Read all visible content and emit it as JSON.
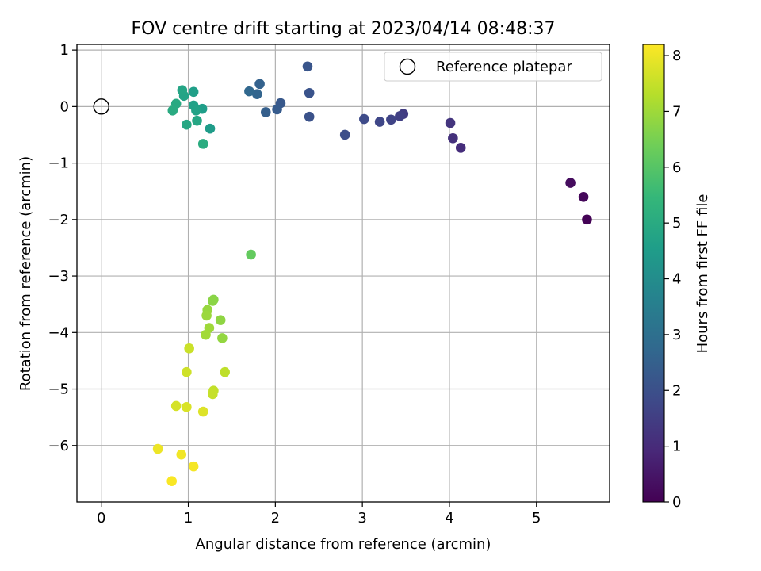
{
  "chart_data": {
    "type": "scatter",
    "title": "FOV centre drift starting at 2023/04/14 08:48:37",
    "xlabel": "Angular distance from reference (arcmin)",
    "ylabel": "Rotation from reference (arcmin)",
    "xlim": [
      -0.28,
      5.84
    ],
    "ylim": [
      -7.0,
      1.1
    ],
    "xticks": [
      0,
      1,
      2,
      3,
      4,
      5
    ],
    "yticks": [
      1,
      0,
      -1,
      -2,
      -3,
      -4,
      -5,
      -6
    ],
    "xtick_labels": [
      "0",
      "1",
      "2",
      "3",
      "4",
      "5"
    ],
    "ytick_labels": [
      "1",
      "0",
      "−1",
      "−2",
      "−3",
      "−4",
      "−5",
      "−6"
    ],
    "grid": true,
    "legend": {
      "placement": "top-right",
      "entries": [
        "Reference platepar"
      ]
    },
    "reference_point": {
      "x": 0,
      "y": 0
    },
    "colorbar": {
      "label": "Hours from first FF file",
      "colormap": "viridis",
      "range": [
        0,
        8.2
      ],
      "ticks": [
        0,
        1,
        2,
        3,
        4,
        5,
        6,
        7,
        8
      ],
      "tick_labels": [
        "0",
        "1",
        "2",
        "3",
        "4",
        "5",
        "6",
        "7",
        "8"
      ]
    },
    "points": [
      {
        "x": 5.58,
        "y": -2.0,
        "hours": 0.05
      },
      {
        "x": 5.54,
        "y": -1.6,
        "hours": 0.15
      },
      {
        "x": 5.39,
        "y": -1.35,
        "hours": 0.25
      },
      {
        "x": 4.13,
        "y": -0.73,
        "hours": 1.05
      },
      {
        "x": 4.04,
        "y": -0.56,
        "hours": 1.15
      },
      {
        "x": 4.01,
        "y": -0.29,
        "hours": 1.25
      },
      {
        "x": 3.47,
        "y": -0.13,
        "hours": 1.45
      },
      {
        "x": 3.43,
        "y": -0.17,
        "hours": 1.55
      },
      {
        "x": 3.33,
        "y": -0.23,
        "hours": 1.65
      },
      {
        "x": 3.2,
        "y": -0.27,
        "hours": 1.75
      },
      {
        "x": 3.02,
        "y": -0.22,
        "hours": 1.85
      },
      {
        "x": 2.8,
        "y": -0.5,
        "hours": 1.95
      },
      {
        "x": 2.39,
        "y": -0.18,
        "hours": 2.05
      },
      {
        "x": 2.39,
        "y": 0.24,
        "hours": 2.1
      },
      {
        "x": 2.37,
        "y": 0.71,
        "hours": 2.15
      },
      {
        "x": 2.06,
        "y": 0.06,
        "hours": 2.25
      },
      {
        "x": 2.02,
        "y": -0.05,
        "hours": 2.35
      },
      {
        "x": 1.89,
        "y": -0.1,
        "hours": 2.45
      },
      {
        "x": 1.82,
        "y": 0.4,
        "hours": 2.55
      },
      {
        "x": 1.79,
        "y": 0.22,
        "hours": 2.65
      },
      {
        "x": 1.7,
        "y": 0.27,
        "hours": 2.75
      },
      {
        "x": 1.25,
        "y": -0.39,
        "hours": 4.5
      },
      {
        "x": 1.16,
        "y": -0.04,
        "hours": 4.55
      },
      {
        "x": 1.06,
        "y": 0.26,
        "hours": 4.6
      },
      {
        "x": 1.06,
        "y": 0.02,
        "hours": 4.65
      },
      {
        "x": 1.09,
        "y": -0.07,
        "hours": 4.7
      },
      {
        "x": 0.95,
        "y": 0.19,
        "hours": 4.75
      },
      {
        "x": 0.93,
        "y": 0.29,
        "hours": 4.8
      },
      {
        "x": 1.1,
        "y": -0.25,
        "hours": 4.85
      },
      {
        "x": 0.98,
        "y": -0.32,
        "hours": 4.9
      },
      {
        "x": 0.86,
        "y": 0.05,
        "hours": 4.95
      },
      {
        "x": 0.82,
        "y": -0.07,
        "hours": 5.0
      },
      {
        "x": 1.17,
        "y": -0.66,
        "hours": 5.05
      },
      {
        "x": 1.72,
        "y": -2.62,
        "hours": 6.2
      },
      {
        "x": 1.29,
        "y": -3.42,
        "hours": 6.7
      },
      {
        "x": 1.28,
        "y": -3.44,
        "hours": 6.75
      },
      {
        "x": 1.37,
        "y": -3.78,
        "hours": 6.8
      },
      {
        "x": 1.39,
        "y": -4.1,
        "hours": 6.85
      },
      {
        "x": 1.22,
        "y": -3.6,
        "hours": 6.9
      },
      {
        "x": 1.21,
        "y": -3.7,
        "hours": 6.95
      },
      {
        "x": 1.24,
        "y": -3.92,
        "hours": 7.0
      },
      {
        "x": 1.2,
        "y": -4.04,
        "hours": 7.05
      },
      {
        "x": 1.42,
        "y": -4.7,
        "hours": 7.4
      },
      {
        "x": 1.29,
        "y": -5.03,
        "hours": 7.45
      },
      {
        "x": 1.28,
        "y": -5.09,
        "hours": 7.5
      },
      {
        "x": 1.01,
        "y": -4.28,
        "hours": 7.55
      },
      {
        "x": 0.98,
        "y": -4.7,
        "hours": 7.6
      },
      {
        "x": 0.86,
        "y": -5.3,
        "hours": 7.7
      },
      {
        "x": 0.98,
        "y": -5.32,
        "hours": 7.75
      },
      {
        "x": 1.17,
        "y": -5.4,
        "hours": 7.8
      },
      {
        "x": 0.65,
        "y": -6.06,
        "hours": 8.0
      },
      {
        "x": 0.92,
        "y": -6.16,
        "hours": 8.05
      },
      {
        "x": 1.06,
        "y": -6.37,
        "hours": 8.1
      },
      {
        "x": 0.81,
        "y": -6.63,
        "hours": 8.15
      }
    ]
  }
}
